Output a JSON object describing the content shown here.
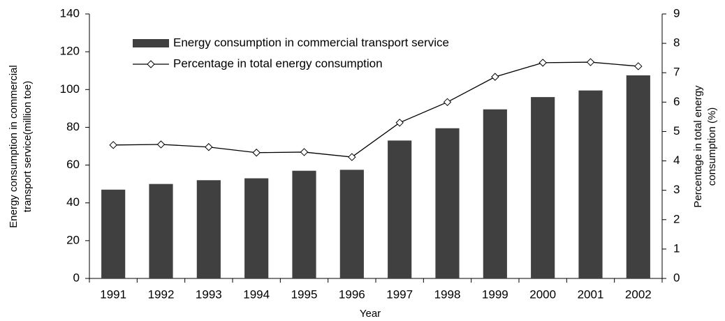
{
  "chart_data": {
    "type": "bar_line",
    "categories": [
      "1991",
      "1992",
      "1993",
      "1994",
      "1995",
      "1996",
      "1997",
      "1998",
      "1999",
      "2000",
      "2001",
      "2002"
    ],
    "series": [
      {
        "name": "Energy consumption in commercial transport service",
        "type": "bar",
        "color": "#404040",
        "values": [
          47,
          50,
          52,
          53,
          57,
          57.5,
          73,
          79.5,
          89.5,
          96,
          99.5,
          107.5
        ]
      },
      {
        "name": "Percentage in total energy consumption",
        "type": "line",
        "color": "#000000",
        "axis": "y2",
        "values": [
          4.54,
          4.56,
          4.47,
          4.28,
          4.3,
          4.13,
          5.3,
          6.0,
          6.86,
          7.34,
          7.36,
          7.22
        ]
      }
    ],
    "xlabel": "Year",
    "ylabel": [
      "Energy consumption in commercial",
      "transport service(million toe)"
    ],
    "y2label": [
      "Percentage in total energy",
      "consumption (%)"
    ],
    "ylim": [
      0,
      140
    ],
    "yticks": [
      0,
      20,
      40,
      60,
      80,
      100,
      120,
      140
    ],
    "y2lim": [
      0,
      9
    ],
    "y2ticks": [
      0,
      1,
      2,
      3,
      4,
      5,
      6,
      7,
      8,
      9
    ]
  }
}
